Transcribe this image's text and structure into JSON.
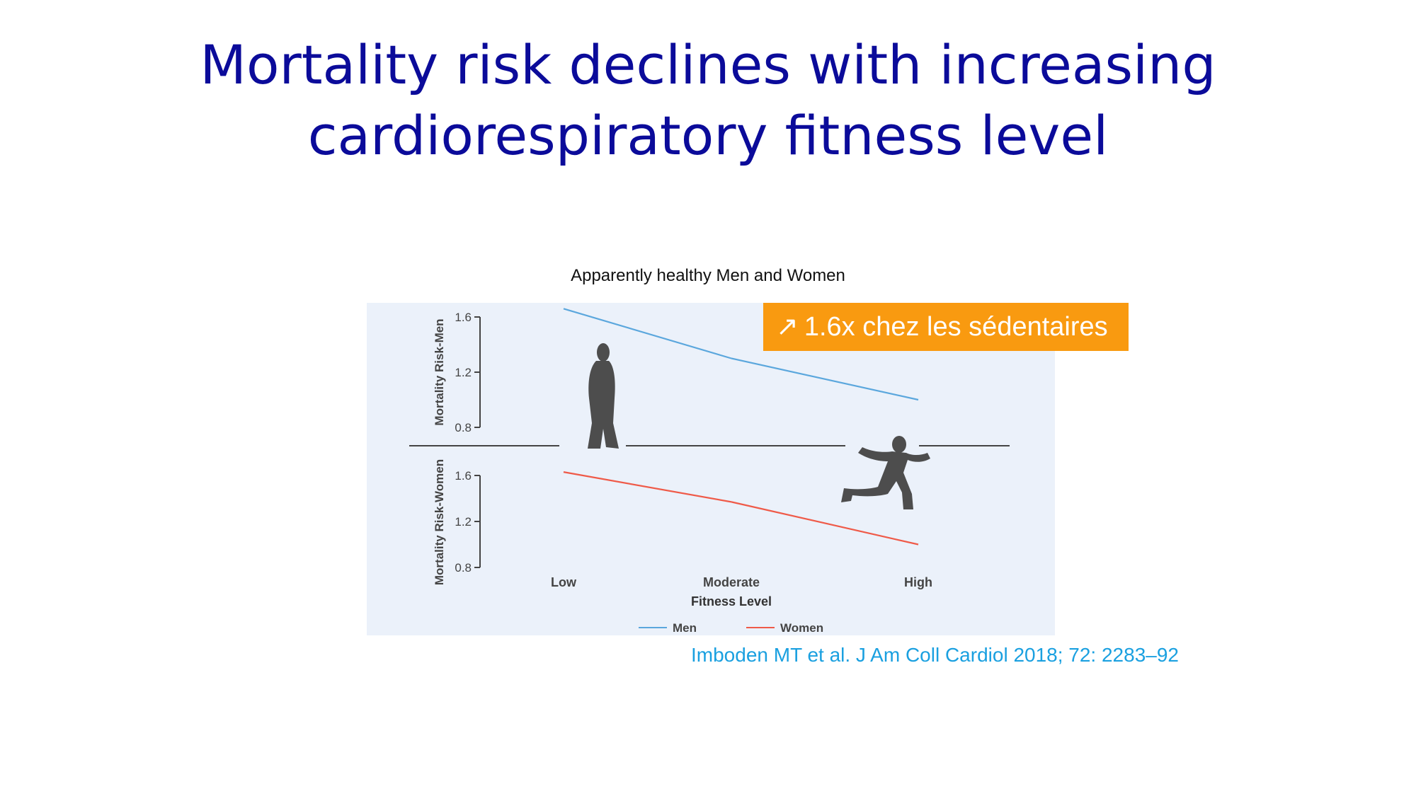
{
  "title": {
    "line1": "Mortality risk declines with increasing",
    "line2": "cardiorespiratory fitness level"
  },
  "chart_caption": "Apparently healthy Men and Women",
  "callout": {
    "arrow": "↗",
    "text": "1.6x chez les sédentaires",
    "color": "#f99a10"
  },
  "citation": "Imboden MT et al. J Am Coll Cardiol 2018; 72: 2283–92",
  "icons": [
    "standing-person-icon",
    "running-person-icon"
  ],
  "chart_data": {
    "type": "line",
    "x_title": "Fitness Level",
    "categories": [
      "Low",
      "Moderate",
      "High"
    ],
    "panels": [
      {
        "name": "men",
        "ylabel": "Mortality Risk-Men",
        "ylim": [
          0.8,
          1.6
        ],
        "yticks": [
          "1.6",
          "1.2",
          "0.8"
        ],
        "series": [
          {
            "name": "Men",
            "color": "#5ba7dd",
            "values": [
              1.66,
              1.3,
              1.0
            ]
          }
        ]
      },
      {
        "name": "women",
        "ylabel": "Mortality Risk-Women",
        "ylim": [
          0.8,
          1.6
        ],
        "yticks": [
          "1.6",
          "1.2",
          "0.8"
        ],
        "series": [
          {
            "name": "Women",
            "color": "#ef5a48",
            "values": [
              1.63,
              1.37,
              1.0
            ]
          }
        ]
      }
    ],
    "legend": [
      "Men",
      "Women"
    ],
    "background": "#ebf1fa"
  }
}
